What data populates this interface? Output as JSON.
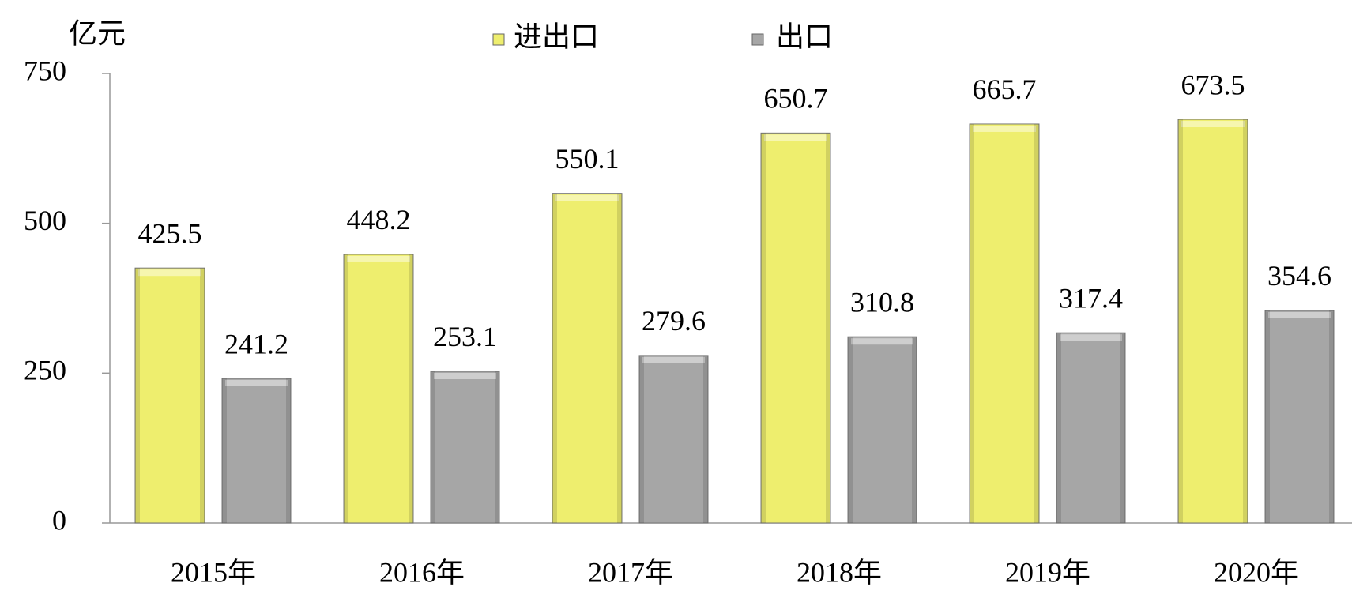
{
  "chart_data": {
    "type": "bar",
    "y_label": "亿元",
    "categories": [
      "2015年",
      "2016年",
      "2017年",
      "2018年",
      "2019年",
      "2020年"
    ],
    "series": [
      {
        "name": "进出口",
        "color": "#eeee6e",
        "values": [
          425.5,
          448.2,
          550.1,
          650.7,
          665.7,
          673.5
        ]
      },
      {
        "name": "出口",
        "color": "#a6a6a6",
        "values": [
          241.2,
          253.1,
          279.6,
          310.8,
          317.4,
          354.6
        ]
      }
    ],
    "ylim": [
      0,
      750
    ],
    "yticks": [
      0,
      250,
      500,
      750
    ],
    "grid": false
  }
}
